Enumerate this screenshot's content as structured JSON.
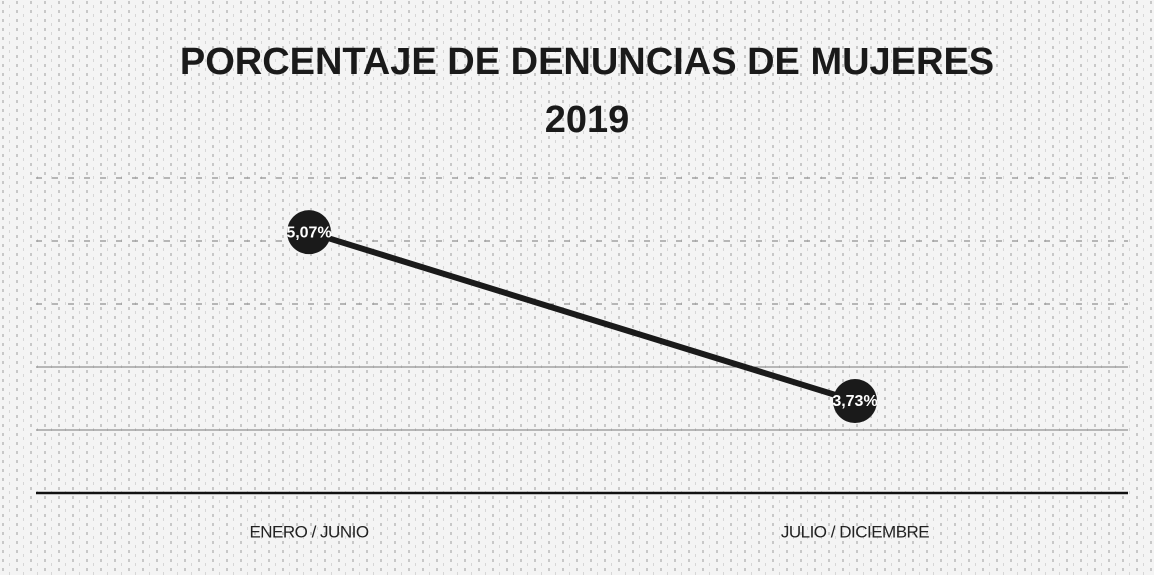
{
  "chart_data": {
    "type": "line",
    "title": [
      "PORCENTAJE DE DENUNCIAS DE MUJERES",
      "2019"
    ],
    "categories": [
      "ENERO / JUNIO",
      "JULIO / DICIEMBRE"
    ],
    "series": [
      {
        "name": null,
        "color": "#1a1a1a",
        "values": [
          5.07,
          3.73
        ],
        "value_labels": [
          "5,07%",
          "3,73%"
        ]
      }
    ],
    "ylim": [
      3,
      5.5
    ],
    "yticks": [
      3,
      3.5,
      4,
      4.5,
      5,
      5.5
    ],
    "grid": true
  }
}
